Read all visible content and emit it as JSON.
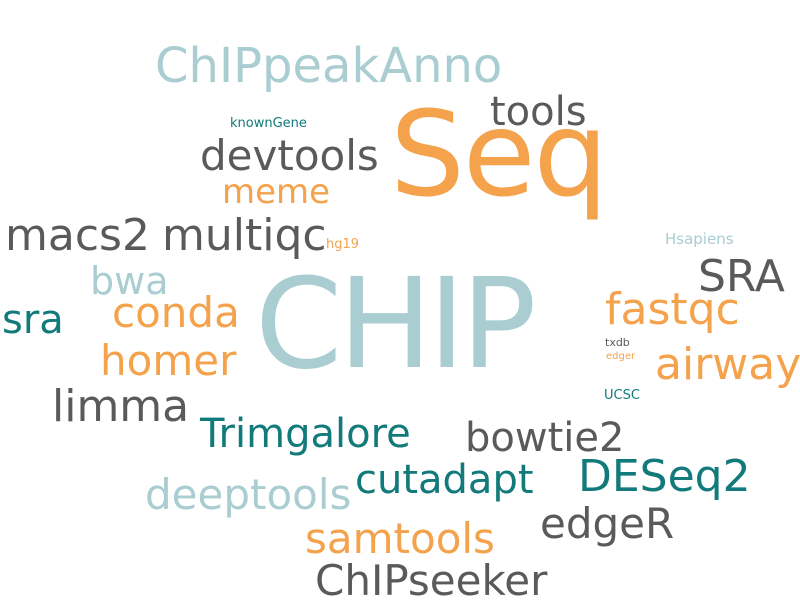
{
  "colors": {
    "light_blue": "#a9cdd0",
    "orange": "#f4a24b",
    "gray": "#5a5a5a",
    "teal": "#127a7a",
    "background": "#ffffff"
  },
  "words": {
    "chip": "CHIP",
    "seq": "Seq",
    "chippeakanno": "ChIPpeakAnno",
    "tools": "tools",
    "knowngene": "knownGene",
    "devtools": "devtools",
    "meme": "meme",
    "macs2": "macs2",
    "multiqc": "multiqc",
    "hg19": "hg19",
    "hsapiens": "Hsapiens",
    "bwa": "bwa",
    "sra_upper": "SRA",
    "sra_lower": "sra",
    "conda": "conda",
    "fastqc": "fastqc",
    "homer": "homer",
    "txdb": "txdb",
    "edger_small": "edger",
    "airway": "airway",
    "ucsc": "UCSC",
    "limma": "limma",
    "trimgalore": "Trimgalore",
    "bowtie2": "bowtie2",
    "cutadapt": "cutadapt",
    "deseq2": "DESeq2",
    "deeptools": "deeptools",
    "edger": "edgeR",
    "samtools": "samtools",
    "chipseeker": "ChIPseeker"
  }
}
